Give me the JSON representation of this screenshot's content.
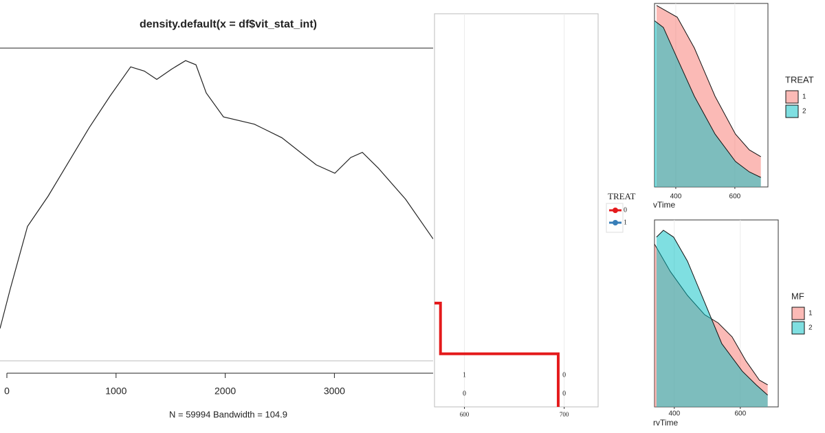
{
  "chart_data": [
    {
      "type": "line",
      "title": "density.default(x = df$vit_stat_int)",
      "x_label": "N = 59994   Bandwidth = 104.9",
      "x": [
        -63,
        31,
        189,
        378,
        567,
        756,
        945,
        1134,
        1259,
        1373,
        1511,
        1637,
        1732,
        1826,
        1984,
        2267,
        2519,
        2834,
        3004,
        3149,
        3256,
        3401,
        3652,
        3904
      ],
      "values": [
        3.1e-05,
        6.9e-05,
        0.000129,
        0.000158,
        0.000191,
        0.000224,
        0.000254,
        0.000282,
        0.000278,
        0.00027,
        0.00028,
        0.000288,
        0.000284,
        0.000257,
        0.000234,
        0.000227,
        0.000214,
        0.000188,
        0.00018,
        0.000195,
        0.0002,
        0.000185,
        0.000155,
        0.000117
      ],
      "color": "#222222",
      "xlim": [
        -63,
        3904
      ],
      "ylim": [
        0,
        0.0003
      ],
      "xticks": [
        0,
        1000,
        2000,
        3000
      ]
    },
    {
      "type": "step",
      "legend_title": "TREAT",
      "xlim": [
        570,
        734
      ],
      "ylim": [
        0,
        1
      ],
      "xticks": [
        600,
        700
      ],
      "grid": true,
      "series": [
        {
          "name": "0",
          "color": "#e41a1c",
          "x": [
            570,
            576,
            694
          ],
          "values": [
            0.264,
            0.135,
            0
          ],
          "risk_table": [
            1,
            0
          ]
        },
        {
          "name": "1",
          "color": "#377eb8",
          "x": [],
          "values": [],
          "risk_table": [
            0,
            0
          ]
        }
      ]
    },
    {
      "type": "area",
      "x_label": "vTime",
      "legend_title": "TREAT",
      "xlim": [
        328,
        712
      ],
      "ylim": [
        0,
        1
      ],
      "xticks": [
        400,
        600
      ],
      "grid": true,
      "series": [
        {
          "name": "1",
          "color": "#F8766D",
          "x": [
            335,
            405,
            463,
            533,
            602,
            649,
            688
          ],
          "values": [
            0.989,
            0.925,
            0.757,
            0.494,
            0.288,
            0.202,
            0.165
          ]
        },
        {
          "name": "2",
          "color": "#00BFC4",
          "x": [
            328,
            358,
            405,
            463,
            533,
            602,
            649,
            688
          ],
          "values": [
            0.906,
            0.869,
            0.7,
            0.494,
            0.288,
            0.139,
            0.082,
            0.052
          ]
        }
      ]
    },
    {
      "type": "area",
      "x_label": "rvTime",
      "legend_title": "MF",
      "xlim": [
        340,
        715
      ],
      "ylim": [
        0,
        1
      ],
      "xticks": [
        400,
        600
      ],
      "grid": true,
      "series": [
        {
          "name": "1",
          "color": "#F8766D",
          "x": [
            340,
            388,
            440,
            492,
            533,
            575,
            617,
            658,
            683
          ],
          "values": [
            0.871,
            0.724,
            0.596,
            0.493,
            0.449,
            0.375,
            0.246,
            0.143,
            0.118
          ]
        },
        {
          "name": "2",
          "color": "#00BFC4",
          "x": [
            346,
            367,
            398,
            440,
            492,
            544,
            606,
            648,
            683
          ],
          "values": [
            0.908,
            0.945,
            0.908,
            0.779,
            0.559,
            0.338,
            0.191,
            0.118,
            0.063
          ]
        }
      ]
    }
  ]
}
